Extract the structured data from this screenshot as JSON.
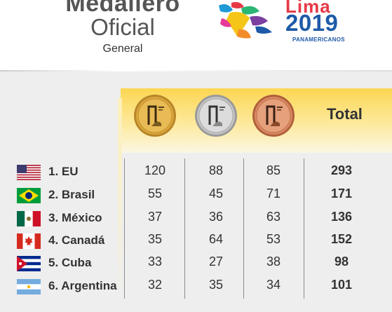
{
  "header": {
    "title_line1": "Medallero",
    "title_line2": "Oficial",
    "subtitle": "General"
  },
  "logo": {
    "line1": "Lima",
    "line2": "2019",
    "line3": "PANAMERICANOS",
    "icon": "lima-2019-emblem-icon"
  },
  "columns": {
    "gold_icon": "gold-medal-icon",
    "silver_icon": "silver-medal-icon",
    "bronze_icon": "bronze-medal-icon",
    "total_label": "Total"
  },
  "colors": {
    "gold": "#d9a63a",
    "silver": "#c5c5c5",
    "bronze": "#d98a63",
    "band": "#fcd652"
  },
  "rows": [
    {
      "country": "1. EU",
      "flag": "usa-flag-icon",
      "gold": "120",
      "silver": "88",
      "bronze": "85",
      "total": "293"
    },
    {
      "country": "2. Brasil",
      "flag": "brazil-flag-icon",
      "gold": "55",
      "silver": "45",
      "bronze": "71",
      "total": "171"
    },
    {
      "country": "3. México",
      "flag": "mexico-flag-icon",
      "gold": "37",
      "silver": "36",
      "bronze": "63",
      "total": "136"
    },
    {
      "country": "4. Canadá",
      "flag": "canada-flag-icon",
      "gold": "35",
      "silver": "64",
      "bronze": "53",
      "total": "152"
    },
    {
      "country": "5. Cuba",
      "flag": "cuba-flag-icon",
      "gold": "33",
      "silver": "27",
      "bronze": "38",
      "total": "98"
    },
    {
      "country": "6. Argentina",
      "flag": "argentina-flag-icon",
      "gold": "32",
      "silver": "35",
      "bronze": "34",
      "total": "101"
    }
  ]
}
